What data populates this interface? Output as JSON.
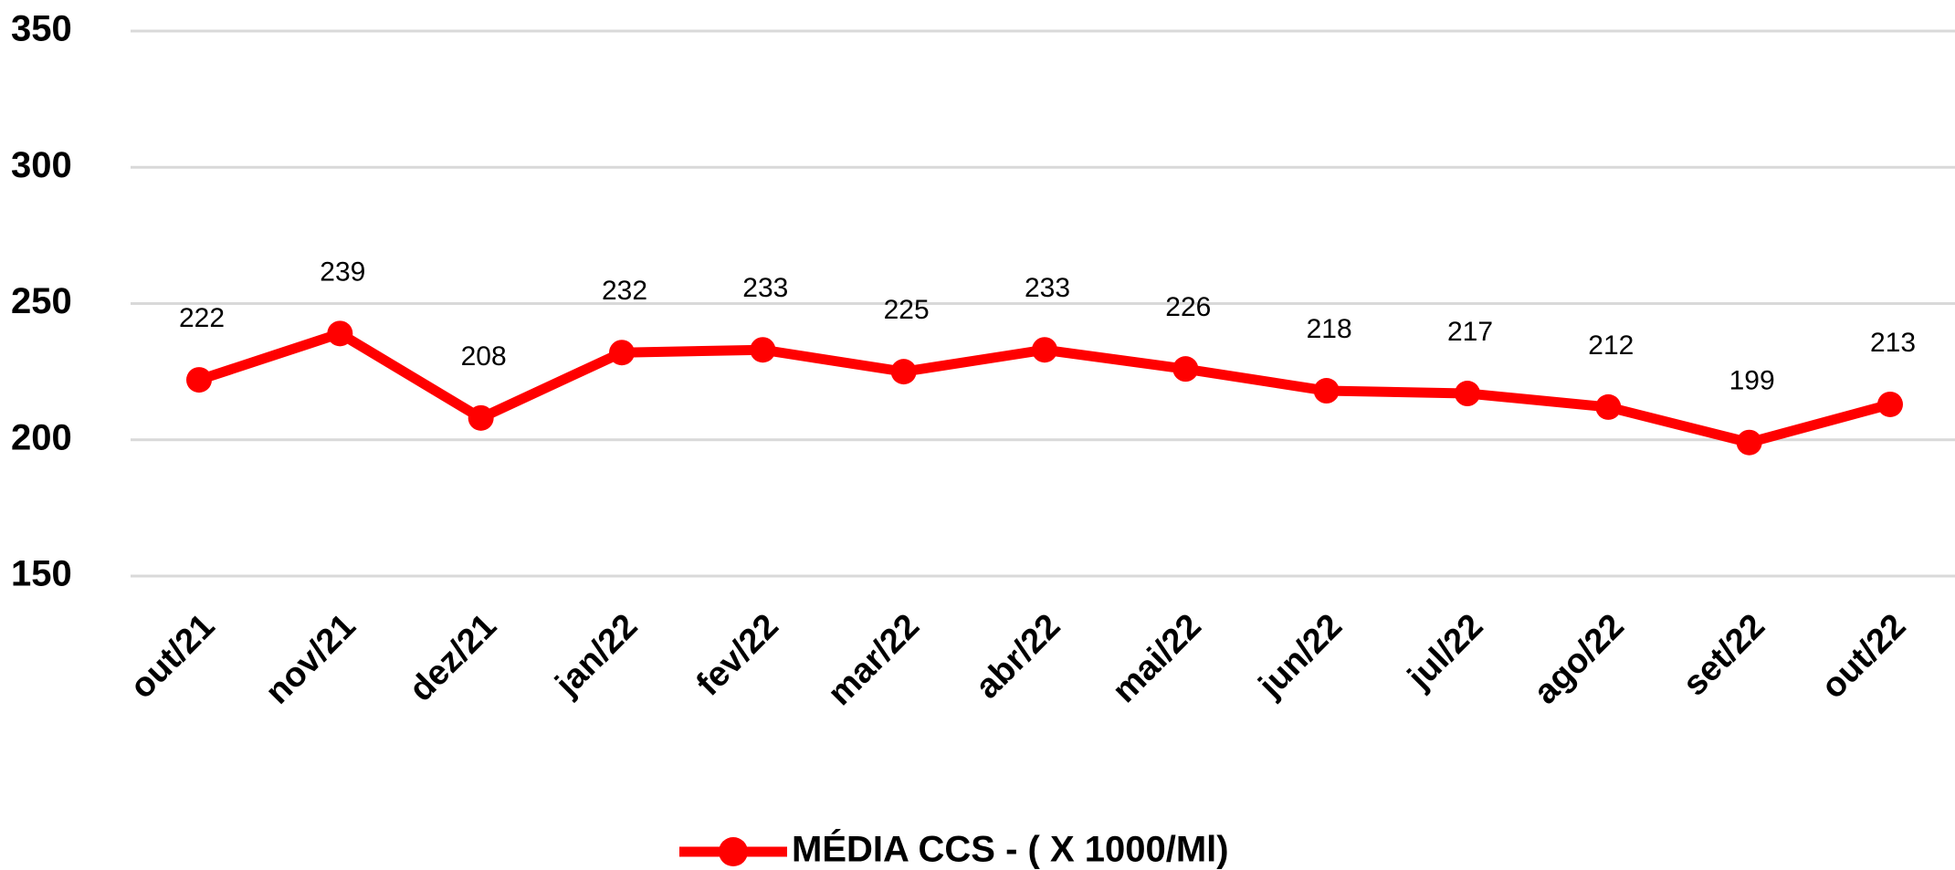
{
  "chart_data": {
    "type": "line",
    "categories": [
      "out/21",
      "nov/21",
      "dez/21",
      "jan/22",
      "fev/22",
      "mar/22",
      "abr/22",
      "mai/22",
      "jun/22",
      "jul/22",
      "ago/22",
      "set/22",
      "out/22"
    ],
    "series": [
      {
        "name": "MÉDIA CCS - ( X 1000/Ml)",
        "color": "#ff0000",
        "values": [
          222,
          239,
          208,
          232,
          233,
          225,
          233,
          226,
          218,
          217,
          212,
          199,
          213
        ]
      }
    ],
    "ylim": [
      150,
      350
    ],
    "yticks": [
      150,
      200,
      250,
      300,
      350
    ],
    "grid": true,
    "legend": "bottom"
  }
}
